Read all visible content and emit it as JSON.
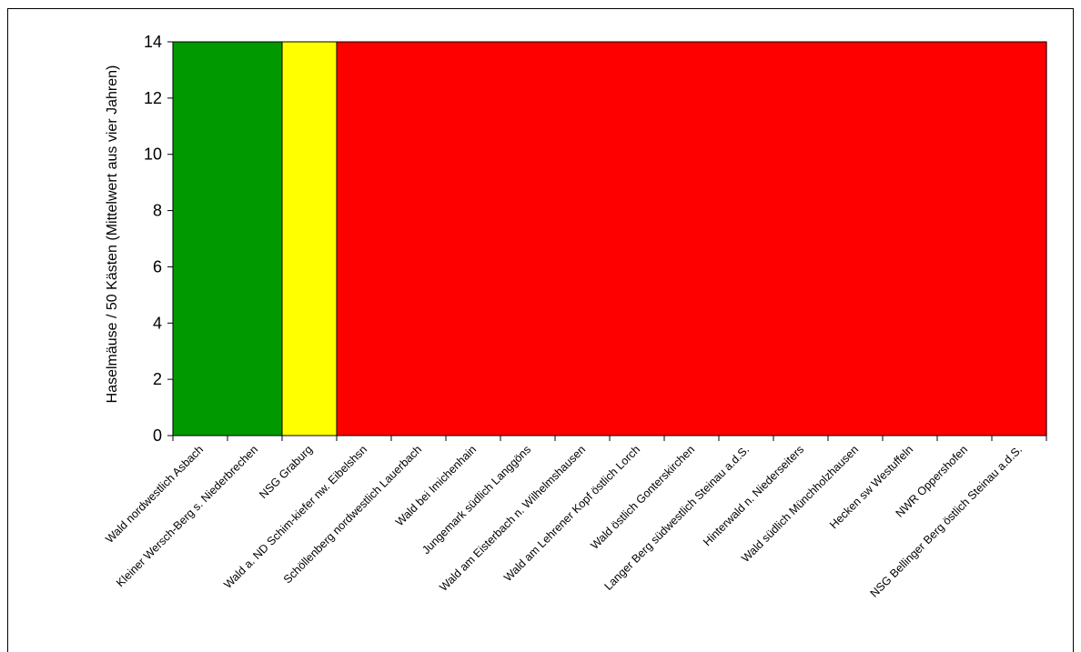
{
  "chart_data": {
    "type": "bar",
    "title": "",
    "xlabel": "",
    "ylabel": "Haselmäuse / 50 Kästen (Mittelwert aus vier Jahren)",
    "ylim": [
      0,
      14
    ],
    "yticks": [
      0,
      2,
      4,
      6,
      8,
      10,
      12,
      14
    ],
    "grid": false,
    "categories": [
      "Wald nordwestlich Asbach",
      "Kleiner Wersch-Berg s. Niederbrechen",
      "NSG Graburg",
      "Wald a. ND Schim-kiefer nw. Eibelshsn",
      "Schöllenberg nordwestlich Lauerbach",
      "Wald bei Imichenhain",
      "Jungemark südlich Langgöns",
      "Wald am Eisterbach n. Wilhelmshausen",
      "Wald am Lehrener Kopf östlich Lorch",
      "Wald östlich Gonterskirchen",
      "Langer Berg südwestlich Steinau a.d.S.",
      "Hinterwald n. Niederseiters",
      "Wald südlich Münchholzhausen",
      "Hecken sw Westuffeln",
      "NWR Oppershofen",
      "NSG Bellinger Berg östlich Steinau a.d.S."
    ],
    "values": [
      14,
      14,
      14,
      14,
      14,
      14,
      14,
      14,
      14,
      14,
      14,
      14,
      14,
      14,
      14,
      14
    ],
    "bar_colors": [
      "#009900",
      "#009900",
      "#ffff00",
      "#ff0000",
      "#ff0000",
      "#ff0000",
      "#ff0000",
      "#ff0000",
      "#ff0000",
      "#ff0000",
      "#ff0000",
      "#ff0000",
      "#ff0000",
      "#ff0000",
      "#ff0000",
      "#ff0000"
    ],
    "bar_outline": "#000000"
  }
}
